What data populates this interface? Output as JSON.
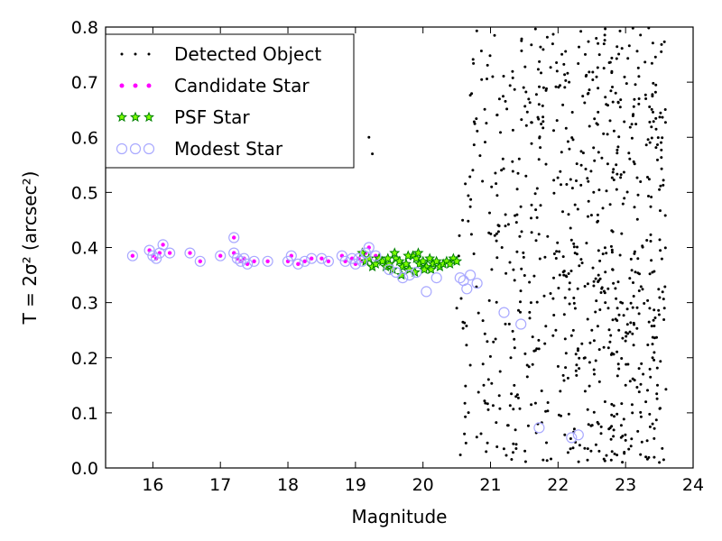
{
  "chart_data": {
    "type": "scatter",
    "xlabel": "Magnitude",
    "ylabel": "T = 2σ² (arcsec²)",
    "xlim": [
      15.3,
      24.0
    ],
    "ylim": [
      0.0,
      0.8
    ],
    "xticks": [
      "16",
      "17",
      "18",
      "19",
      "20",
      "21",
      "22",
      "23",
      "24"
    ],
    "yticks": [
      "0.0",
      "0.1",
      "0.2",
      "0.3",
      "0.4",
      "0.5",
      "0.6",
      "0.7",
      "0.8"
    ],
    "grid": false,
    "legend_position": "top-left",
    "legend": [
      "Detected Object",
      "Candidate Star",
      "PSF Star",
      "Modest Star"
    ],
    "colors": {
      "detected": "#000000",
      "candidate": "#ff00ff",
      "psf": "#008000",
      "psf_edge": "#7fff00",
      "modest": "#a9a9ff"
    },
    "series": [
      {
        "name": "Detected Object",
        "marker": "dot",
        "points": [
          [
            19.2,
            0.6
          ],
          [
            19.25,
            0.57
          ],
          [
            20.5,
            0.29
          ],
          [
            20.9,
            0.15
          ],
          [
            21.3,
            0.2
          ],
          [
            21.6,
            0.3
          ],
          [
            21.7,
            0.08
          ],
          [
            22.1,
            0.06
          ],
          [
            22.6,
            0.08
          ],
          [
            22.8,
            0.03
          ],
          [
            23.0,
            0.05
          ],
          [
            23.1,
            0.1
          ],
          [
            23.3,
            0.02
          ],
          [
            23.5,
            0.01
          ],
          [
            23.2,
            0.67
          ],
          [
            23.3,
            0.67
          ],
          [
            22.4,
            0.2
          ],
          [
            22.5,
            0.25
          ],
          [
            22.9,
            0.25
          ],
          [
            23.2,
            0.28
          ],
          [
            23.4,
            0.2
          ],
          [
            23.4,
            0.08
          ],
          [
            23.3,
            0.12
          ],
          [
            23.0,
            0.15
          ],
          [
            22.9,
            0.18
          ],
          [
            22.7,
            0.3
          ],
          [
            22.6,
            0.35
          ]
        ],
        "scatter_region": {
          "x_range": [
            20.5,
            23.6
          ],
          "y_range": [
            0.01,
            0.8
          ],
          "count": 760
        }
      },
      {
        "name": "Candidate Star",
        "marker": "circle",
        "points": [
          [
            15.7,
            0.385
          ],
          [
            15.95,
            0.395
          ],
          [
            16.0,
            0.385
          ],
          [
            16.05,
            0.38
          ],
          [
            16.1,
            0.39
          ],
          [
            16.15,
            0.405
          ],
          [
            16.25,
            0.39
          ],
          [
            16.55,
            0.39
          ],
          [
            16.7,
            0.375
          ],
          [
            17.0,
            0.385
          ],
          [
            17.2,
            0.39
          ],
          [
            17.25,
            0.38
          ],
          [
            17.3,
            0.375
          ],
          [
            17.35,
            0.38
          ],
          [
            17.4,
            0.37
          ],
          [
            17.5,
            0.375
          ],
          [
            17.7,
            0.375
          ],
          [
            17.2,
            0.418
          ],
          [
            18.0,
            0.375
          ],
          [
            18.05,
            0.385
          ],
          [
            18.15,
            0.37
          ],
          [
            18.25,
            0.375
          ],
          [
            18.35,
            0.38
          ],
          [
            18.5,
            0.38
          ],
          [
            18.6,
            0.375
          ],
          [
            18.8,
            0.385
          ],
          [
            18.85,
            0.375
          ],
          [
            18.95,
            0.38
          ],
          [
            19.0,
            0.37
          ],
          [
            19.05,
            0.38
          ],
          [
            19.1,
            0.375
          ],
          [
            19.2,
            0.4
          ],
          [
            19.15,
            0.39
          ],
          [
            19.3,
            0.385
          ]
        ]
      },
      {
        "name": "PSF Star",
        "marker": "star",
        "points": [
          [
            19.1,
            0.39
          ],
          [
            19.15,
            0.375
          ],
          [
            19.2,
            0.38
          ],
          [
            19.25,
            0.365
          ],
          [
            19.3,
            0.37
          ],
          [
            19.35,
            0.38
          ],
          [
            19.4,
            0.375
          ],
          [
            19.45,
            0.365
          ],
          [
            19.5,
            0.37
          ],
          [
            19.55,
            0.36
          ],
          [
            19.6,
            0.38
          ],
          [
            19.65,
            0.375
          ],
          [
            19.7,
            0.365
          ],
          [
            19.75,
            0.37
          ],
          [
            19.8,
            0.36
          ],
          [
            19.85,
            0.385
          ],
          [
            19.9,
            0.38
          ],
          [
            19.95,
            0.37
          ],
          [
            20.0,
            0.375
          ],
          [
            20.05,
            0.365
          ],
          [
            20.1,
            0.38
          ],
          [
            20.15,
            0.37
          ],
          [
            20.2,
            0.375
          ],
          [
            20.25,
            0.365
          ],
          [
            20.3,
            0.37
          ],
          [
            20.35,
            0.375
          ],
          [
            20.4,
            0.37
          ],
          [
            20.45,
            0.38
          ],
          [
            20.5,
            0.375
          ],
          [
            19.58,
            0.39
          ],
          [
            19.78,
            0.385
          ],
          [
            19.93,
            0.39
          ],
          [
            20.02,
            0.36
          ],
          [
            19.68,
            0.35
          ],
          [
            19.88,
            0.355
          ],
          [
            20.12,
            0.36
          ],
          [
            19.48,
            0.38
          ]
        ]
      },
      {
        "name": "Modest Star",
        "marker": "open-circle",
        "points": [
          [
            15.7,
            0.385
          ],
          [
            15.95,
            0.395
          ],
          [
            16.0,
            0.385
          ],
          [
            16.05,
            0.38
          ],
          [
            16.1,
            0.39
          ],
          [
            16.15,
            0.405
          ],
          [
            16.25,
            0.39
          ],
          [
            16.55,
            0.39
          ],
          [
            16.7,
            0.375
          ],
          [
            17.0,
            0.385
          ],
          [
            17.2,
            0.39
          ],
          [
            17.25,
            0.38
          ],
          [
            17.3,
            0.375
          ],
          [
            17.35,
            0.38
          ],
          [
            17.4,
            0.37
          ],
          [
            17.5,
            0.375
          ],
          [
            17.7,
            0.375
          ],
          [
            17.2,
            0.418
          ],
          [
            18.0,
            0.375
          ],
          [
            18.05,
            0.385
          ],
          [
            18.15,
            0.37
          ],
          [
            18.25,
            0.375
          ],
          [
            18.35,
            0.38
          ],
          [
            18.5,
            0.38
          ],
          [
            18.6,
            0.375
          ],
          [
            18.8,
            0.385
          ],
          [
            18.85,
            0.375
          ],
          [
            18.95,
            0.38
          ],
          [
            19.0,
            0.37
          ],
          [
            19.05,
            0.38
          ],
          [
            19.1,
            0.375
          ],
          [
            19.2,
            0.4
          ],
          [
            19.15,
            0.39
          ],
          [
            19.3,
            0.385
          ],
          [
            19.5,
            0.36
          ],
          [
            19.6,
            0.355
          ],
          [
            19.7,
            0.345
          ],
          [
            19.8,
            0.35
          ],
          [
            19.9,
            0.355
          ],
          [
            20.05,
            0.32
          ],
          [
            20.2,
            0.345
          ],
          [
            20.55,
            0.345
          ],
          [
            20.6,
            0.34
          ],
          [
            20.65,
            0.325
          ],
          [
            20.7,
            0.35
          ],
          [
            20.8,
            0.335
          ],
          [
            21.2,
            0.282
          ],
          [
            21.45,
            0.261
          ],
          [
            21.72,
            0.073
          ],
          [
            22.2,
            0.055
          ],
          [
            22.3,
            0.06
          ]
        ]
      }
    ]
  }
}
